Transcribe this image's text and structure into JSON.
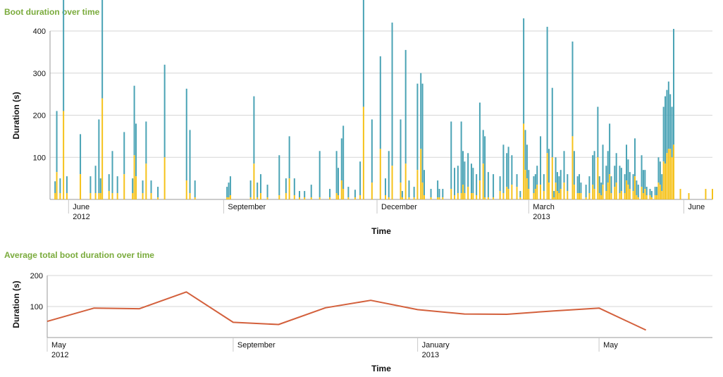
{
  "colors": {
    "title": "#7aab3c",
    "bar_base": "#f5c21b",
    "bar_top": "#4aa3b5",
    "line": "#d3603c",
    "grid": "#d6d6d6",
    "axis": "#999999"
  },
  "chart_data": [
    {
      "type": "bar",
      "stacked": true,
      "title": "Boot duration over time",
      "xlabel": "Time",
      "ylabel": "Duration (s)",
      "ylim": [
        0,
        400
      ],
      "yticks": [
        100,
        200,
        300,
        400
      ],
      "xlim": [
        "2012-05-21",
        "2013-06-18"
      ],
      "xticks": [
        {
          "date": "2012-06-01",
          "label": "June",
          "sublabel": "2012"
        },
        {
          "date": "2012-09-01",
          "label": "September",
          "sublabel": ""
        },
        {
          "date": "2012-12-01",
          "label": "December",
          "sublabel": ""
        },
        {
          "date": "2013-03-01",
          "label": "March",
          "sublabel": "2013"
        },
        {
          "date": "2013-06-01",
          "label": "June",
          "sublabel": ""
        }
      ],
      "grid": true,
      "series": [
        {
          "values": [
            [
              "2012-05-24",
              15,
              28
            ],
            [
              "2012-05-25",
              65,
              145
            ],
            [
              "2012-05-27",
              15,
              35
            ],
            [
              "2012-05-29",
              210,
              285
            ],
            [
              "2012-05-31",
              15,
              40
            ],
            [
              "2012-06-08",
              60,
              95
            ],
            [
              "2012-06-14",
              15,
              40
            ],
            [
              "2012-06-17",
              15,
              65
            ],
            [
              "2012-06-19",
              15,
              175
            ],
            [
              "2012-06-20",
              15,
              35
            ],
            [
              "2012-06-21",
              240,
              305
            ],
            [
              "2012-06-25",
              20,
              40
            ],
            [
              "2012-06-27",
              15,
              100
            ],
            [
              "2012-06-30",
              15,
              40
            ],
            [
              "2012-07-04",
              60,
              100
            ],
            [
              "2012-07-09",
              15,
              35
            ],
            [
              "2012-07-10",
              105,
              165
            ],
            [
              "2012-07-11",
              55,
              125
            ],
            [
              "2012-07-15",
              15,
              30
            ],
            [
              "2012-07-17",
              85,
              100
            ],
            [
              "2012-07-20",
              15,
              30
            ],
            [
              "2012-07-24",
              5,
              25
            ],
            [
              "2012-07-28",
              100,
              220
            ],
            [
              "2012-08-10",
              45,
              218
            ],
            [
              "2012-08-12",
              15,
              150
            ],
            [
              "2012-08-15",
              5,
              40
            ],
            [
              "2012-09-03",
              5,
              25
            ],
            [
              "2012-09-04",
              5,
              35
            ],
            [
              "2012-09-05",
              10,
              45
            ],
            [
              "2012-09-17",
              5,
              40
            ],
            [
              "2012-09-19",
              85,
              160
            ],
            [
              "2012-09-21",
              5,
              35
            ],
            [
              "2012-09-23",
              15,
              45
            ],
            [
              "2012-09-27",
              5,
              30
            ],
            [
              "2012-10-04",
              10,
              95
            ],
            [
              "2012-10-08",
              15,
              35
            ],
            [
              "2012-10-10",
              50,
              100
            ],
            [
              "2012-10-13",
              10,
              40
            ],
            [
              "2012-10-16",
              5,
              15
            ],
            [
              "2012-10-19",
              5,
              15
            ],
            [
              "2012-10-23",
              5,
              30
            ],
            [
              "2012-10-28",
              5,
              110
            ],
            [
              "2012-11-03",
              5,
              20
            ],
            [
              "2012-11-07",
              15,
              100
            ],
            [
              "2012-11-08",
              10,
              65
            ],
            [
              "2012-11-10",
              45,
              100
            ],
            [
              "2012-11-11",
              25,
              150
            ],
            [
              "2012-11-14",
              5,
              25
            ],
            [
              "2012-11-18",
              5,
              18
            ],
            [
              "2012-11-21",
              10,
              80
            ],
            [
              "2012-11-23",
              220,
              285
            ],
            [
              "2012-11-28",
              40,
              150
            ],
            [
              "2012-12-03",
              120,
              220
            ],
            [
              "2012-12-06",
              10,
              40
            ],
            [
              "2012-12-08",
              5,
              110
            ],
            [
              "2012-12-10",
              80,
              340
            ],
            [
              "2012-12-15",
              40,
              150
            ],
            [
              "2012-12-16",
              5,
              15
            ],
            [
              "2012-12-18",
              85,
              270
            ],
            [
              "2012-12-20",
              5,
              40
            ],
            [
              "2012-12-23",
              5,
              25
            ],
            [
              "2012-12-25",
              70,
              205
            ],
            [
              "2012-12-27",
              120,
              180
            ],
            [
              "2012-12-28",
              40,
              235
            ],
            [
              "2012-12-29",
              10,
              60
            ],
            [
              "2013-01-02",
              5,
              20
            ],
            [
              "2013-01-06",
              5,
              40
            ],
            [
              "2013-01-07",
              5,
              20
            ],
            [
              "2013-01-09",
              5,
              20
            ],
            [
              "2013-01-14",
              25,
              160
            ],
            [
              "2013-01-16",
              10,
              65
            ],
            [
              "2013-01-18",
              15,
              65
            ],
            [
              "2013-01-20",
              15,
              170
            ],
            [
              "2013-01-21",
              35,
              80
            ],
            [
              "2013-01-22",
              15,
              75
            ],
            [
              "2013-01-24",
              30,
              80
            ],
            [
              "2013-01-26",
              15,
              70
            ],
            [
              "2013-01-27",
              15,
              60
            ],
            [
              "2013-01-29",
              10,
              50
            ],
            [
              "2013-01-31",
              45,
              185
            ],
            [
              "2013-02-02",
              85,
              80
            ],
            [
              "2013-02-03",
              5,
              145
            ],
            [
              "2013-02-05",
              5,
              60
            ],
            [
              "2013-02-08",
              5,
              55
            ],
            [
              "2013-02-12",
              20,
              35
            ],
            [
              "2013-02-14",
              15,
              115
            ],
            [
              "2013-02-16",
              30,
              80
            ],
            [
              "2013-02-17",
              25,
              100
            ],
            [
              "2013-02-19",
              35,
              70
            ],
            [
              "2013-02-22",
              30,
              30
            ],
            [
              "2013-02-24",
              5,
              15
            ],
            [
              "2013-02-26",
              180,
              250
            ],
            [
              "2013-02-27",
              70,
              95
            ],
            [
              "2013-02-28",
              50,
              80
            ],
            [
              "2013-03-01",
              25,
              45
            ],
            [
              "2013-03-04",
              15,
              40
            ],
            [
              "2013-03-05",
              25,
              35
            ],
            [
              "2013-03-06",
              35,
              45
            ],
            [
              "2013-03-08",
              35,
              115
            ],
            [
              "2013-03-10",
              20,
              40
            ],
            [
              "2013-03-12",
              110,
              300
            ],
            [
              "2013-03-13",
              40,
              80
            ],
            [
              "2013-03-15",
              100,
              165
            ],
            [
              "2013-03-16",
              5,
              15
            ],
            [
              "2013-03-17",
              40,
              60
            ],
            [
              "2013-03-18",
              20,
              45
            ],
            [
              "2013-03-19",
              15,
              40
            ],
            [
              "2013-03-20",
              25,
              45
            ],
            [
              "2013-03-22",
              40,
              75
            ],
            [
              "2013-03-24",
              20,
              40
            ],
            [
              "2013-03-27",
              150,
              225
            ],
            [
              "2013-03-28",
              35,
              80
            ],
            [
              "2013-03-30",
              15,
              40
            ],
            [
              "2013-03-31",
              15,
              45
            ],
            [
              "2013-04-01",
              15,
              25
            ],
            [
              "2013-04-04",
              5,
              30
            ],
            [
              "2013-04-06",
              15,
              40
            ],
            [
              "2013-04-08",
              35,
              70
            ],
            [
              "2013-04-09",
              25,
              90
            ],
            [
              "2013-04-11",
              100,
              120
            ],
            [
              "2013-04-12",
              15,
              40
            ],
            [
              "2013-04-13",
              10,
              30
            ],
            [
              "2013-04-14",
              35,
              95
            ],
            [
              "2013-04-16",
              20,
              60
            ],
            [
              "2013-04-17",
              40,
              75
            ],
            [
              "2013-04-18",
              60,
              120
            ],
            [
              "2013-04-19",
              15,
              40
            ],
            [
              "2013-04-21",
              30,
              50
            ],
            [
              "2013-04-22",
              40,
              70
            ],
            [
              "2013-04-24",
              15,
              65
            ],
            [
              "2013-04-25",
              20,
              55
            ],
            [
              "2013-04-27",
              15,
              45
            ],
            [
              "2013-04-28",
              45,
              85
            ],
            [
              "2013-04-29",
              35,
              60
            ],
            [
              "2013-04-30",
              25,
              40
            ],
            [
              "2013-05-02",
              20,
              40
            ],
            [
              "2013-05-03",
              55,
              90
            ],
            [
              "2013-05-04",
              10,
              35
            ],
            [
              "2013-05-05",
              5,
              30
            ],
            [
              "2013-05-07",
              30,
              75
            ],
            [
              "2013-05-08",
              15,
              55
            ],
            [
              "2013-05-09",
              25,
              45
            ],
            [
              "2013-05-10",
              10,
              20
            ],
            [
              "2013-05-12",
              10,
              15
            ],
            [
              "2013-05-13",
              5,
              15
            ],
            [
              "2013-05-15",
              10,
              20
            ],
            [
              "2013-05-16",
              10,
              20
            ],
            [
              "2013-05-17",
              40,
              60
            ],
            [
              "2013-05-18",
              35,
              55
            ],
            [
              "2013-05-19",
              20,
              40
            ],
            [
              "2013-05-20",
              90,
              130
            ],
            [
              "2013-05-21",
              85,
              160
            ],
            [
              "2013-05-22",
              110,
              150
            ],
            [
              "2013-05-23",
              120,
              160
            ],
            [
              "2013-05-24",
              120,
              130
            ],
            [
              "2013-05-25",
              100,
              120
            ],
            [
              "2013-05-26",
              130,
              275
            ],
            [
              "2013-05-30",
              25,
              0
            ],
            [
              "2013-06-04",
              15,
              0
            ],
            [
              "2013-06-14",
              25,
              0
            ],
            [
              "2013-06-18",
              25,
              0
            ]
          ]
        }
      ]
    },
    {
      "type": "line",
      "title": "Average total boot duration over time",
      "xlabel": "Time",
      "ylabel": "Duration (s)",
      "ylim": [
        0,
        200
      ],
      "yticks": [
        100,
        200
      ],
      "xlim": [
        "2012-05-01",
        "2013-07-15"
      ],
      "xticks": [
        {
          "date": "2012-05-01",
          "label": "May",
          "sublabel": "2012"
        },
        {
          "date": "2012-09-01",
          "label": "September",
          "sublabel": ""
        },
        {
          "date": "2013-01-01",
          "label": "January",
          "sublabel": "2013"
        },
        {
          "date": "2013-05-01",
          "label": "May",
          "sublabel": ""
        }
      ],
      "grid": true,
      "series": [
        {
          "values": [
            [
              "2012-05-01",
              52
            ],
            [
              "2012-06-01",
              95
            ],
            [
              "2012-07-01",
              93
            ],
            [
              "2012-08-01",
              147
            ],
            [
              "2012-09-01",
              49
            ],
            [
              "2012-10-01",
              42
            ],
            [
              "2012-11-01",
              96
            ],
            [
              "2012-12-01",
              120
            ],
            [
              "2013-01-01",
              90
            ],
            [
              "2013-02-01",
              76
            ],
            [
              "2013-03-01",
              75
            ],
            [
              "2013-04-01",
              86
            ],
            [
              "2013-05-01",
              95
            ],
            [
              "2013-06-01",
              24
            ]
          ]
        }
      ]
    }
  ]
}
